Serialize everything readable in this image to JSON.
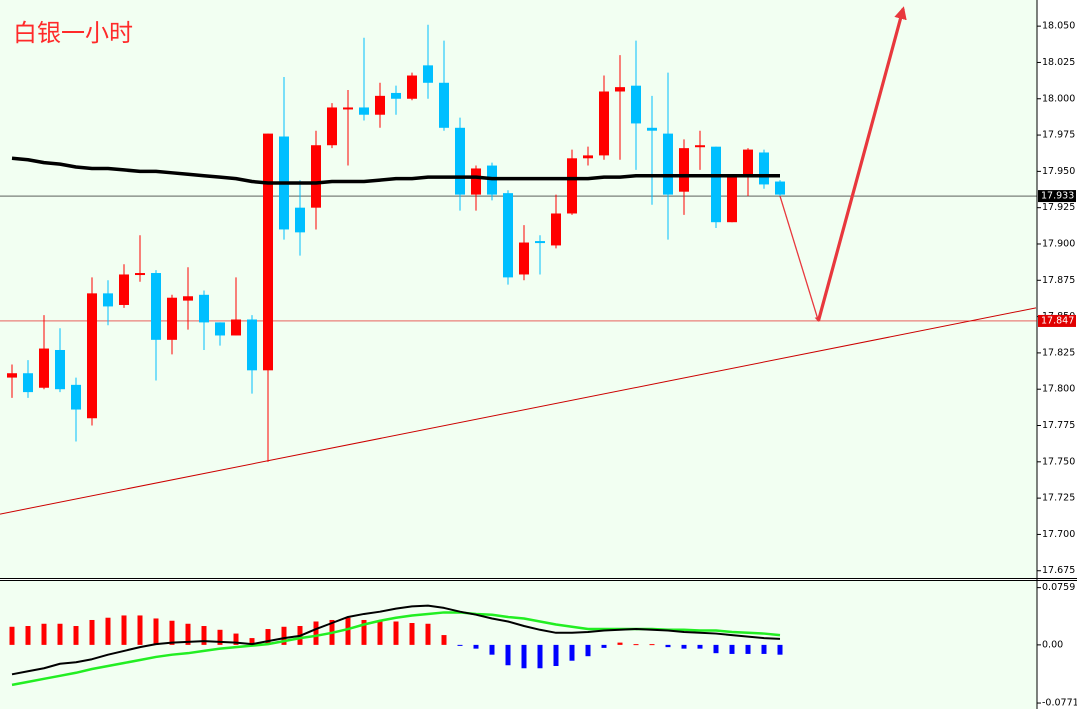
{
  "chart_data": [
    {
      "type": "candlestick",
      "title": "白银一小时",
      "up_color": "#ff0000",
      "down_color": "#00bfff",
      "open": [
        17.808,
        17.811,
        17.801,
        17.827,
        17.803,
        17.78,
        17.866,
        17.858,
        17.879,
        17.88,
        17.834,
        17.861,
        17.865,
        17.846,
        17.837,
        17.848,
        17.813,
        17.974,
        17.925,
        17.925,
        17.968,
        17.993,
        17.994,
        17.989,
        18.004,
        18.0,
        18.023,
        18.011,
        17.98,
        17.934,
        17.954,
        17.935,
        17.879,
        17.902,
        17.899,
        17.921,
        17.959,
        17.961,
        18.005,
        18.009,
        17.98,
        17.976,
        17.936,
        17.967,
        17.967,
        17.915,
        17.947,
        17.963,
        17.943
      ],
      "high": [
        17.817,
        17.82,
        17.851,
        17.842,
        17.808,
        17.877,
        17.875,
        17.886,
        17.906,
        17.882,
        17.865,
        17.884,
        17.868,
        17.846,
        17.877,
        17.851,
        17.976,
        18.015,
        17.944,
        17.978,
        17.997,
        18.006,
        18.042,
        18.011,
        18.009,
        18.018,
        18.051,
        18.04,
        17.987,
        17.954,
        17.956,
        17.937,
        17.913,
        17.906,
        17.934,
        17.965,
        17.967,
        18.016,
        18.03,
        18.04,
        18.002,
        18.018,
        17.972,
        17.978,
        17.967,
        17.947,
        17.966,
        17.965,
        17.944
      ],
      "low": [
        17.794,
        17.794,
        17.8,
        17.798,
        17.764,
        17.775,
        17.844,
        17.856,
        17.874,
        17.806,
        17.824,
        17.841,
        17.827,
        17.83,
        17.837,
        17.797,
        17.75,
        17.903,
        17.892,
        17.91,
        17.966,
        17.954,
        17.985,
        17.98,
        17.989,
        17.999,
        18.0,
        17.978,
        17.923,
        17.923,
        17.93,
        17.872,
        17.875,
        17.879,
        17.897,
        17.92,
        17.954,
        17.958,
        17.958,
        17.951,
        17.927,
        17.903,
        17.92,
        17.951,
        17.911,
        17.915,
        17.933,
        17.938,
        17.933
      ],
      "close": [
        17.811,
        17.798,
        17.828,
        17.8,
        17.786,
        17.866,
        17.857,
        17.879,
        17.88,
        17.834,
        17.863,
        17.864,
        17.846,
        17.837,
        17.848,
        17.813,
        17.976,
        17.91,
        17.908,
        17.968,
        17.994,
        17.994,
        17.989,
        18.002,
        18.0,
        18.016,
        18.011,
        17.98,
        17.934,
        17.952,
        17.934,
        17.877,
        17.901,
        17.901,
        17.921,
        17.959,
        17.961,
        18.005,
        18.008,
        17.983,
        17.978,
        17.934,
        17.966,
        17.968,
        17.915,
        17.947,
        17.965,
        17.941,
        17.934
      ],
      "ma": {
        "color": "#000000",
        "values": [
          17.959,
          17.958,
          17.956,
          17.955,
          17.953,
          17.952,
          17.952,
          17.951,
          17.95,
          17.95,
          17.949,
          17.948,
          17.947,
          17.946,
          17.945,
          17.943,
          17.942,
          17.942,
          17.942,
          17.942,
          17.943,
          17.943,
          17.943,
          17.944,
          17.945,
          17.945,
          17.946,
          17.946,
          17.946,
          17.946,
          17.945,
          17.945,
          17.945,
          17.945,
          17.945,
          17.945,
          17.945,
          17.946,
          17.946,
          17.947,
          17.947,
          17.947,
          17.947,
          17.947,
          17.947,
          17.947,
          17.947,
          17.947,
          17.947
        ]
      },
      "price_lines": [
        {
          "value": 17.933,
          "color": "#000000"
        },
        {
          "value": 17.847,
          "color": "#e00000"
        }
      ],
      "trendline": {
        "color": "#cc0000",
        "bar": [
          -0.75,
          64
        ],
        "price": [
          17.714,
          17.856
        ]
      },
      "forecast": {
        "color": "#e8383d",
        "bar": [
          48,
          50.4,
          55.7
        ],
        "price": [
          17.933,
          17.847,
          18.062
        ]
      },
      "ylim": [
        17.67,
        18.068
      ],
      "yticks": [
        17.675,
        {
          "value": 17.7,
          "label": "17.700"
        },
        17.725,
        {
          "value": 17.75,
          "label": "17.750"
        },
        17.775,
        {
          "value": 17.8,
          "label": "17.800"
        },
        17.825,
        {
          "value": 17.85,
          "label": "17.850"
        },
        17.875,
        {
          "value": 17.9,
          "label": "17.900"
        },
        17.925,
        {
          "value": 17.95,
          "label": "17.950"
        },
        17.975,
        {
          "value": 18,
          "label": "18.000"
        },
        18.025,
        {
          "value": 18.05,
          "label": "18.050"
        }
      ]
    },
    {
      "type": "macd",
      "histogram": {
        "up_color": "#ff0000",
        "down_color": "#0000ff",
        "values": [
          0.024,
          0.025,
          0.028,
          0.028,
          0.025,
          0.033,
          0.036,
          0.039,
          0.039,
          0.035,
          0.032,
          0.028,
          0.025,
          0.02,
          0.015,
          0.009,
          0.021,
          0.024,
          0.025,
          0.031,
          0.033,
          0.036,
          0.033,
          0.032,
          0.031,
          0.029,
          0.028,
          0.013,
          -0.001,
          -0.005,
          -0.013,
          -0.027,
          -0.031,
          -0.031,
          -0.028,
          -0.021,
          -0.015,
          -0.004,
          0.003,
          0.001,
          0.001,
          -0.003,
          -0.005,
          -0.005,
          -0.011,
          -0.012,
          -0.012,
          -0.012,
          -0.013
        ]
      },
      "main": {
        "color": "#000000",
        "values": [
          -0.039,
          -0.035,
          -0.031,
          -0.025,
          -0.023,
          -0.019,
          -0.013,
          -0.008,
          -0.003,
          0.001,
          0.003,
          0.004,
          0.005,
          0.004,
          0.003,
          0.001,
          0.005,
          0.009,
          0.012,
          0.021,
          0.029,
          0.037,
          0.041,
          0.044,
          0.048,
          0.051,
          0.052,
          0.049,
          0.044,
          0.04,
          0.035,
          0.031,
          0.025,
          0.02,
          0.016,
          0.016,
          0.017,
          0.019,
          0.02,
          0.021,
          0.02,
          0.019,
          0.017,
          0.016,
          0.015,
          0.013,
          0.011,
          0.009,
          0.008
        ]
      },
      "signal": {
        "color": "#22ee22",
        "values": [
          -0.053,
          -0.049,
          -0.045,
          -0.041,
          -0.037,
          -0.032,
          -0.028,
          -0.024,
          -0.02,
          -0.016,
          -0.013,
          -0.011,
          -0.008,
          -0.005,
          -0.003,
          -0.001,
          0.001,
          0.005,
          0.009,
          0.012,
          0.016,
          0.021,
          0.027,
          0.032,
          0.036,
          0.039,
          0.041,
          0.043,
          0.043,
          0.041,
          0.04,
          0.037,
          0.035,
          0.031,
          0.027,
          0.024,
          0.021,
          0.021,
          0.021,
          0.021,
          0.021,
          0.02,
          0.02,
          0.019,
          0.019,
          0.017,
          0.016,
          0.015,
          0.013
        ]
      },
      "ylim": [
        -0.085,
        0.086
      ],
      "yticks": [
        0.0759,
        {
          "value": 0,
          "label": "0.00"
        },
        -0.0771
      ]
    }
  ]
}
